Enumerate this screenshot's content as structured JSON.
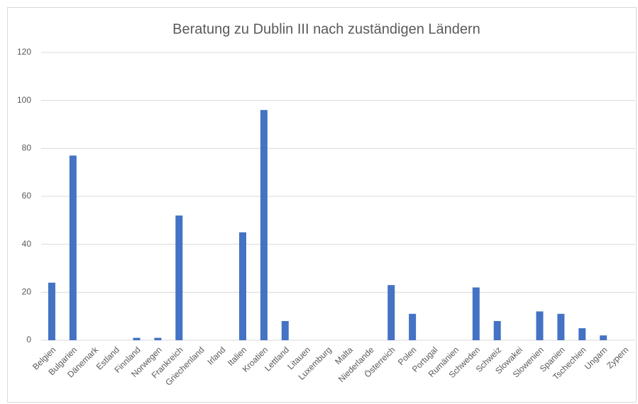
{
  "chart_data": {
    "type": "bar",
    "title": "Beratung zu Dublin III nach zuständigen Ländern",
    "categories": [
      "Belgien",
      "Bulgarien",
      "Dänemark",
      "Estland",
      "Finnland",
      "Norwegen",
      "Frankreich",
      "Griechenland",
      "Irland",
      "Italien",
      "Kroatien",
      "Lettland",
      "Litauen",
      "Luxemburg",
      "Malta",
      "Niederlande",
      "Österreich",
      "Polen",
      "Portugal",
      "Rumänien",
      "Schweden",
      "Schweiz",
      "Slowakei",
      "Slowenien",
      "Spanien",
      "Tschechien",
      "Ungarn",
      "Zypern"
    ],
    "values": [
      24,
      77,
      0,
      0,
      1,
      1,
      52,
      0,
      0,
      45,
      96,
      8,
      0,
      0,
      0,
      0,
      23,
      11,
      0,
      0,
      22,
      8,
      0,
      12,
      11,
      5,
      2,
      0
    ],
    "color": "#4472c4",
    "ylim": [
      0,
      120
    ],
    "yticks": [
      0,
      20,
      40,
      60,
      80,
      100,
      120
    ],
    "grid": true
  }
}
